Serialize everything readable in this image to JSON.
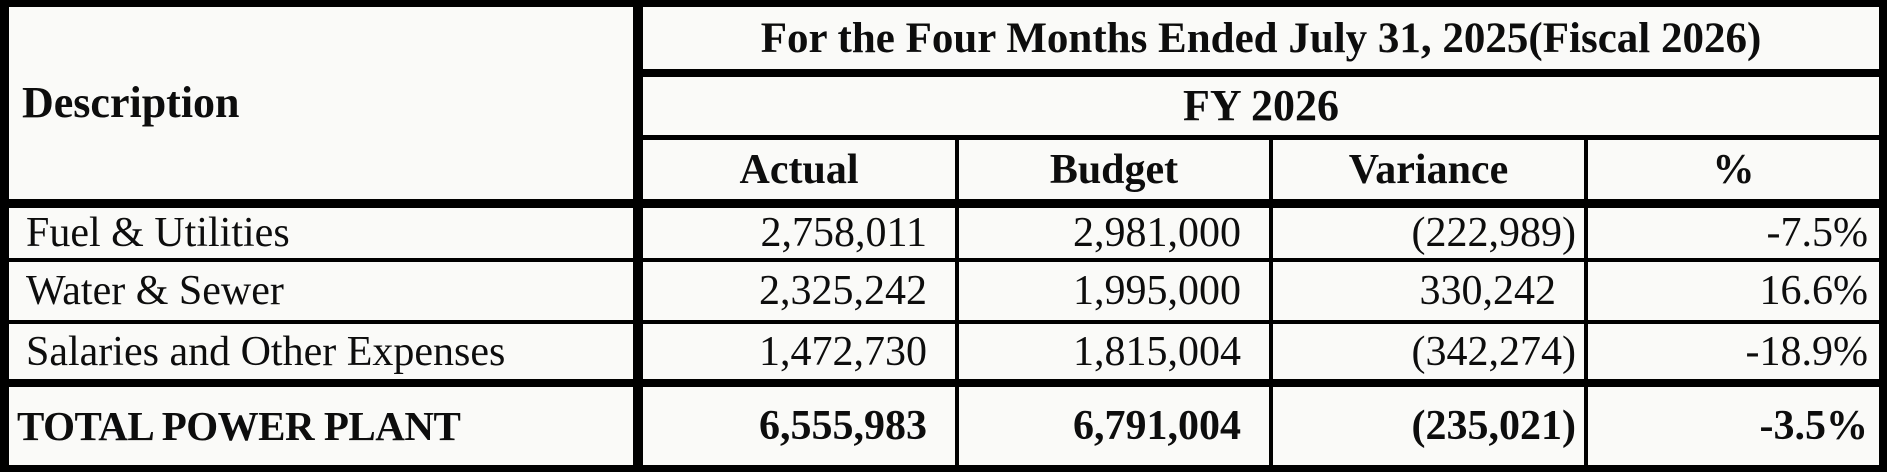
{
  "table": {
    "description_header": "Description",
    "period_header": "For the Four Months Ended July 31, 2025(Fiscal 2026)",
    "fiscal_year_header": "FY 2026",
    "columns": [
      "Actual",
      "Budget",
      "Variance",
      "%"
    ],
    "rows": [
      {
        "label": "Fuel & Utilities",
        "actual": "2,758,011",
        "budget": "2,981,000",
        "variance": "(222,989)",
        "percent": "-7.5%"
      },
      {
        "label": "Water & Sewer",
        "actual": "2,325,242",
        "budget": "1,995,000",
        "variance": "330,242",
        "percent": "16.6%"
      },
      {
        "label": "Salaries and Other Expenses",
        "actual": "1,472,730",
        "budget": "1,815,004",
        "variance": "(342,274)",
        "percent": "-18.9%"
      }
    ],
    "total": {
      "label": "TOTAL POWER PLANT",
      "actual": "6,555,983",
      "budget": "6,791,004",
      "variance": "(235,021)",
      "percent": "-3.5%"
    }
  },
  "colors": {
    "grid_line": "#000000",
    "cell_background": "#fafaf8",
    "text": "#0d0d0d"
  }
}
